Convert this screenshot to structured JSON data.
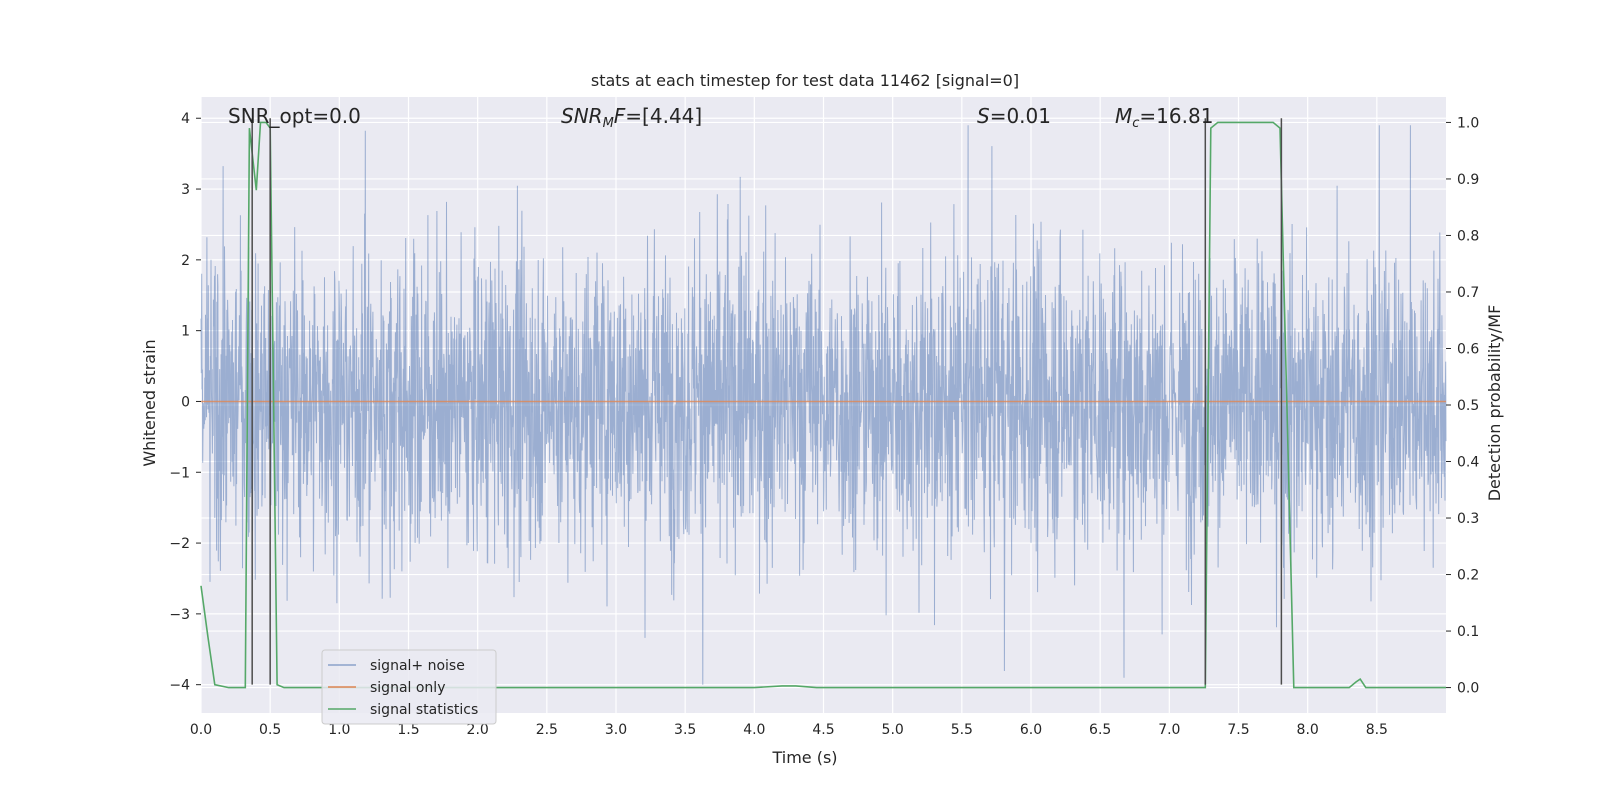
{
  "chart_data": {
    "type": "line",
    "title": "stats at each timestep for test data 11462 [signal=0]",
    "xlabel": "Time (s)",
    "ylabel": "Whitened strain",
    "ylabel_right": "Detection probability/MF",
    "xlim": [
      0.0,
      9.0
    ],
    "ylim": [
      -4.4,
      4.3
    ],
    "ylim_right": [
      -0.045,
      1.045
    ],
    "xticks": [
      "0.0",
      "0.5",
      "1.0",
      "1.5",
      "2.0",
      "2.5",
      "3.0",
      "3.5",
      "4.0",
      "4.5",
      "5.0",
      "5.5",
      "6.0",
      "6.5",
      "7.0",
      "7.5",
      "8.0",
      "8.5"
    ],
    "yticks": [
      "4",
      "3",
      "2",
      "1",
      "0",
      "−1",
      "−2",
      "−3",
      "−4"
    ],
    "yticks_right": [
      "1.0",
      "0.9",
      "0.8",
      "0.7",
      "0.6",
      "0.5",
      "0.4",
      "0.3",
      "0.2",
      "0.1",
      "0.0"
    ],
    "grid": true,
    "legend_position": "lower-left",
    "colors": {
      "background": "#eaeaf2",
      "grid": "#ffffff",
      "noise": "#4c72b0",
      "signal": "#dd8452",
      "statistics": "#55a868",
      "markers": "#4d4d4d"
    },
    "annotations": {
      "snr_opt": "SNR_opt=0.0",
      "snr_mf_italic": "SNR",
      "snr_mf_sub": "M",
      "snr_mf_rest_italic": "F",
      "snr_mf_value": "=[4.44]",
      "s_italic": "S",
      "s_value": "=0.01",
      "mc_italic": "M",
      "mc_sub": "c",
      "mc_value": "=16.81"
    },
    "series": [
      {
        "name": "signal+ noise",
        "description_values": "whitened noise, roughly ±1.5 band with spikes up to about ±3.9",
        "amplitude_band": [
          -1.7,
          1.7
        ],
        "peak_max": 3.9,
        "peak_min": -4.0
      },
      {
        "name": "signal only",
        "x": [
          0.0,
          9.0
        ],
        "y": [
          0.0,
          0.0
        ]
      },
      {
        "name": "signal statistics",
        "x": [
          0.0,
          0.05,
          0.1,
          0.2,
          0.3,
          0.32,
          0.35,
          0.4,
          0.43,
          0.47,
          0.5,
          0.55,
          0.6,
          1.0,
          2.0,
          3.0,
          4.0,
          4.2,
          4.3,
          4.45,
          5.0,
          6.0,
          7.0,
          7.26,
          7.3,
          7.35,
          7.45,
          7.75,
          7.8,
          7.85,
          7.9,
          7.95,
          8.0,
          8.3,
          8.35,
          8.38,
          8.42,
          8.5,
          9.0
        ],
        "y": [
          0.18,
          0.09,
          0.005,
          0.0,
          0.0,
          0.0,
          0.99,
          0.88,
          1.0,
          1.0,
          0.99,
          0.005,
          0.0,
          0.0,
          0.0,
          0.0,
          0.0,
          0.003,
          0.003,
          0.0,
          0.0,
          0.0,
          0.0,
          0.0,
          0.99,
          1.0,
          1.0,
          1.0,
          0.99,
          0.5,
          0.0,
          0.0,
          0.0,
          0.0,
          0.01,
          0.015,
          0.0,
          0.0,
          0.0
        ]
      }
    ],
    "marker_lines_x": [
      0.37,
      0.5,
      7.26,
      7.81
    ],
    "marker_lines_y": [
      -4.0,
      4.0
    ]
  }
}
